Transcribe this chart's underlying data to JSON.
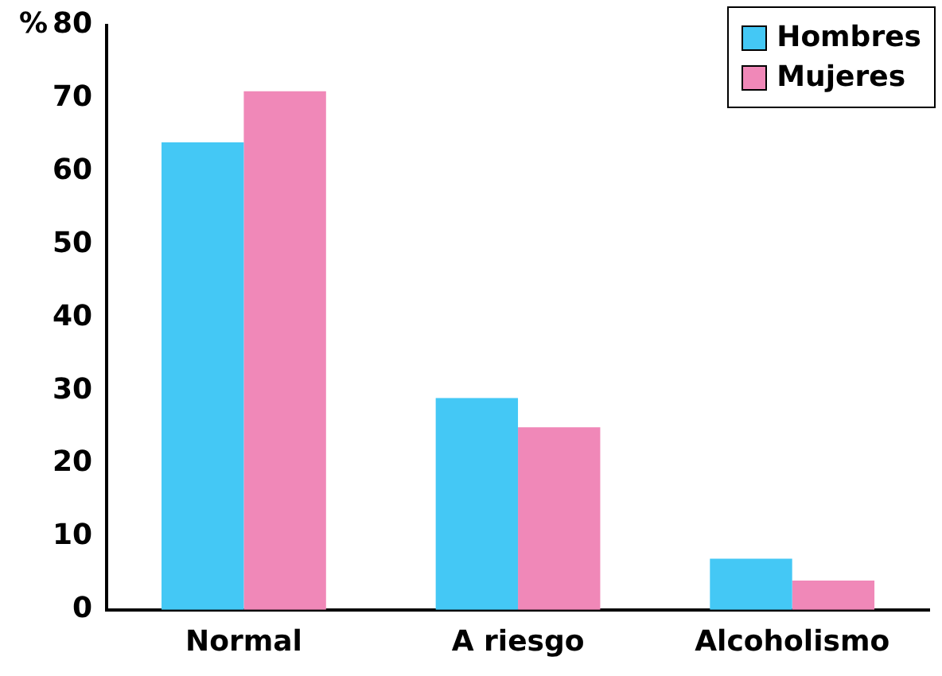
{
  "chart_data": {
    "type": "bar",
    "ylabel": "%",
    "categories": [
      "Normal",
      "A riesgo",
      "Alcoholismo"
    ],
    "series": [
      {
        "name": "Hombres",
        "color": "#44c8f5",
        "values": [
          64,
          29,
          7
        ]
      },
      {
        "name": "Mujeres",
        "color": "#f088b8",
        "values": [
          71,
          25,
          4
        ]
      }
    ],
    "ylim": [
      0,
      80
    ],
    "yticks": [
      0,
      10,
      20,
      30,
      40,
      50,
      60,
      70,
      80
    ],
    "grid": false,
    "legend": "top right"
  }
}
